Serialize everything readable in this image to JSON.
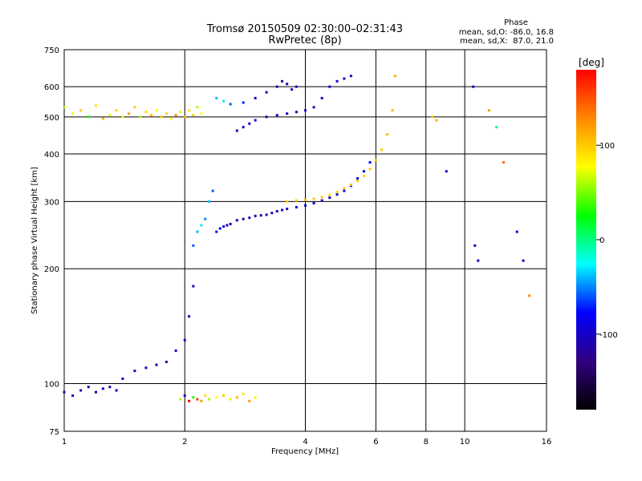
{
  "chart_data": {
    "type": "scatter",
    "title": "Tromsø 20150509 02:30:00–02:31:43",
    "subtitle": "RwPretec (8p)",
    "xlabel": "Frequency [MHz]",
    "ylabel": "Stationary phase Virtual Height [km]",
    "x_scale": "log",
    "y_scale": "log",
    "xlim": [
      1,
      16
    ],
    "ylim": [
      75,
      750
    ],
    "x_ticks": [
      1,
      2,
      4,
      6,
      8,
      10,
      16
    ],
    "x_tick_labels": [
      "1",
      "2",
      "4",
      "6",
      "8",
      "10",
      "16"
    ],
    "y_ticks": [
      75,
      100,
      200,
      300,
      400,
      500,
      600,
      750
    ],
    "y_tick_labels": [
      "75",
      "100",
      "200",
      "300",
      "400",
      "500",
      "600",
      "750"
    ],
    "x_grid": [
      2,
      4,
      6,
      8,
      10
    ],
    "y_grid": [
      100,
      200,
      300,
      400,
      500,
      600
    ],
    "stats": {
      "heading": "Phase",
      "line_o": "mean, sd,O: -86.0, 16.8",
      "line_x": "mean, sd,X:  87.0, 21.0"
    },
    "colorbar": {
      "label": "[deg]",
      "range": [
        -180,
        180
      ],
      "ticks": [
        100,
        0,
        -100
      ],
      "tick_labels": [
        "100",
        "0",
        "-100"
      ],
      "colors": [
        "#ff0000",
        "#ff8800",
        "#ffff00",
        "#00ff00",
        "#00ffff",
        "#0000ff",
        "#300080",
        "#000000"
      ]
    },
    "series": [
      {
        "x": [
          1.0,
          1.05,
          1.1,
          1.15,
          1.2,
          1.25,
          1.3,
          1.35,
          1.4,
          1.45,
          1.5,
          1.55,
          1.6,
          1.65,
          1.7,
          1.75,
          1.8,
          1.85,
          1.9,
          1.95,
          2.0,
          2.05,
          2.1,
          2.15,
          2.2
        ],
        "y": [
          530,
          510,
          520,
          500,
          535,
          495,
          505,
          520,
          500,
          510,
          530,
          500,
          515,
          505,
          520,
          500,
          510,
          495,
          505,
          515,
          500,
          520,
          505,
          530,
          510
        ],
        "phase": [
          60,
          80,
          100,
          30,
          90,
          110,
          70,
          95,
          85,
          120,
          100,
          60,
          90,
          110,
          75,
          100,
          95,
          80,
          130,
          70,
          110,
          90,
          100,
          60,
          80
        ]
      },
      {
        "x": [
          1.0,
          1.05,
          1.1,
          1.15,
          1.2,
          1.25,
          1.3,
          1.35,
          1.4,
          1.5,
          1.6,
          1.7,
          1.8,
          1.9,
          2.0,
          2.05,
          2.1
        ],
        "y": [
          95,
          93,
          96,
          98,
          95,
          97,
          98,
          96,
          103,
          108,
          110,
          112,
          114,
          122,
          130,
          150,
          180
        ],
        "phase": [
          -100,
          -95,
          -110,
          -105,
          -100,
          -98,
          -110,
          -102,
          -95,
          -100,
          -108,
          -100,
          -104,
          -96,
          -100,
          -110,
          -105
        ]
      },
      {
        "x": [
          2.1,
          2.15,
          2.2,
          2.25,
          2.3,
          2.35,
          2.4,
          2.45,
          2.5,
          2.55,
          2.6,
          2.7,
          2.8,
          2.9,
          3.0,
          3.1,
          3.2,
          3.3,
          3.4,
          3.5,
          3.6,
          3.8,
          4.0,
          4.2,
          4.4,
          4.6,
          4.8,
          5.0,
          5.2,
          5.4,
          5.6,
          5.8
        ],
        "y": [
          230,
          250,
          260,
          270,
          300,
          320,
          250,
          255,
          258,
          260,
          262,
          268,
          270,
          272,
          275,
          276,
          277,
          280,
          283,
          285,
          287,
          290,
          293,
          297,
          302,
          307,
          313,
          320,
          330,
          345,
          360,
          380
        ],
        "phase": [
          -60,
          -40,
          -30,
          -50,
          -40,
          -60,
          -80,
          -85,
          -90,
          -95,
          -100,
          -105,
          -110,
          -115,
          -120,
          -118,
          -115,
          -112,
          -110,
          -108,
          -106,
          -104,
          -102,
          -100,
          -98,
          -96,
          -94,
          -92,
          -90,
          -88,
          -86,
          -84
        ]
      },
      {
        "x": [
          3.6,
          3.8,
          4.0,
          4.2,
          4.4,
          4.6,
          4.8,
          5.0,
          5.2,
          5.4,
          5.6,
          5.8,
          6.0,
          6.2,
          6.4,
          6.6,
          6.7
        ],
        "y": [
          300,
          302,
          303,
          305,
          308,
          312,
          318,
          325,
          332,
          340,
          350,
          365,
          385,
          410,
          450,
          520,
          640
        ],
        "phase": [
          100,
          100,
          105,
          100,
          100,
          95,
          98,
          100,
          102,
          100,
          95,
          100,
          98,
          100,
          105,
          110,
          110
        ]
      },
      {
        "x": [
          2.7,
          2.8,
          2.9,
          3.0,
          3.2,
          3.4,
          3.6,
          3.8,
          4.0,
          4.2,
          4.4,
          4.6,
          4.8,
          5.0,
          5.2
        ],
        "y": [
          460,
          470,
          480,
          490,
          500,
          505,
          510,
          515,
          520,
          530,
          560,
          600,
          620,
          630,
          640
        ],
        "phase": [
          -100,
          -100,
          -105,
          -98,
          -110,
          -100,
          -95,
          -102,
          -100,
          -105,
          -100,
          -95,
          -100,
          -110,
          -105
        ]
      },
      {
        "x": [
          2.4,
          2.5,
          2.6,
          2.8,
          3.0,
          3.2,
          3.4,
          3.5,
          3.6,
          3.7,
          3.8
        ],
        "y": [
          560,
          550,
          540,
          545,
          560,
          580,
          600,
          620,
          610,
          590,
          600
        ],
        "phase": [
          -40,
          -30,
          -60,
          -70,
          -90,
          -110,
          -130,
          -120,
          -110,
          -100,
          -90
        ]
      },
      {
        "x": [
          1.95,
          2.0,
          2.05,
          2.1,
          2.15,
          2.2,
          2.25,
          2.3,
          2.4,
          2.5,
          2.6,
          2.7,
          2.8,
          2.9,
          3.0
        ],
        "y": [
          91,
          93,
          90,
          92,
          91,
          90,
          93,
          91,
          92,
          93,
          91,
          92,
          94,
          90,
          92
        ],
        "phase": [
          60,
          -100,
          180,
          30,
          160,
          120,
          90,
          60,
          80,
          100,
          70,
          110,
          90,
          120,
          80
        ]
      },
      {
        "x": [
          8.3,
          8.5,
          9.0,
          10.5,
          10.6,
          10.8,
          11.5,
          12.0,
          12.5,
          13.5,
          14.0,
          14.5
        ],
        "y": [
          500,
          490,
          360,
          600,
          230,
          210,
          520,
          470,
          380,
          250,
          210,
          170
        ],
        "phase": [
          100,
          110,
          -100,
          -110,
          -100,
          -105,
          120,
          0,
          140,
          -90,
          -100,
          130
        ]
      }
    ]
  }
}
